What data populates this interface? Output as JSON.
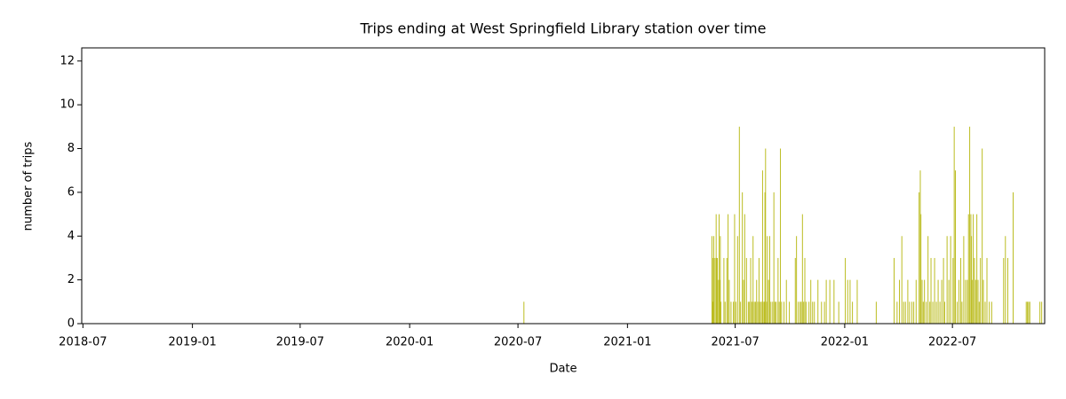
{
  "chart_data": {
    "type": "bar",
    "title": "Trips ending at West Springfield Library station over time",
    "xlabel": "Date",
    "ylabel": "number of trips",
    "color": "#bcbd22",
    "xlim": [
      "2018-06-29",
      "2022-12-03"
    ],
    "xticks": [
      "2018-07",
      "2019-01",
      "2019-07",
      "2020-01",
      "2020-07",
      "2021-01",
      "2021-07",
      "2022-01",
      "2022-07"
    ],
    "ylim": [
      0,
      12.6
    ],
    "yticks": [
      0,
      2,
      4,
      6,
      8,
      10,
      12
    ],
    "x": [
      "2020-07-11",
      "2021-05-23",
      "2021-05-24",
      "2021-05-25",
      "2021-05-26",
      "2021-05-28",
      "2021-05-30",
      "2021-05-31",
      "2021-06-01",
      "2021-06-02",
      "2021-06-04",
      "2021-06-05",
      "2021-06-06",
      "2021-06-07",
      "2021-06-12",
      "2021-06-14",
      "2021-06-17",
      "2021-06-19",
      "2021-06-21",
      "2021-06-24",
      "2021-06-28",
      "2021-06-30",
      "2021-07-02",
      "2021-07-05",
      "2021-07-08",
      "2021-07-10",
      "2021-07-13",
      "2021-07-15",
      "2021-07-17",
      "2021-07-20",
      "2021-07-23",
      "2021-07-25",
      "2021-07-27",
      "2021-07-29",
      "2021-07-31",
      "2021-08-02",
      "2021-08-04",
      "2021-08-06",
      "2021-08-08",
      "2021-08-10",
      "2021-08-12",
      "2021-08-14",
      "2021-08-16",
      "2021-08-17",
      "2021-08-19",
      "2021-08-20",
      "2021-08-21",
      "2021-08-23",
      "2021-08-24",
      "2021-08-26",
      "2021-08-28",
      "2021-08-30",
      "2021-09-02",
      "2021-09-04",
      "2021-09-06",
      "2021-09-08",
      "2021-09-11",
      "2021-09-13",
      "2021-09-15",
      "2021-09-17",
      "2021-09-21",
      "2021-09-25",
      "2021-09-30",
      "2021-10-10",
      "2021-10-12",
      "2021-10-15",
      "2021-10-18",
      "2021-10-20",
      "2021-10-22",
      "2021-10-24",
      "2021-10-26",
      "2021-10-28",
      "2021-11-02",
      "2021-11-05",
      "2021-11-08",
      "2021-11-11",
      "2021-11-17",
      "2021-11-23",
      "2021-11-28",
      "2021-12-01",
      "2021-12-07",
      "2021-12-14",
      "2021-12-22",
      "2022-01-02",
      "2022-01-06",
      "2022-01-10",
      "2022-01-14",
      "2022-01-22",
      "2022-02-23",
      "2022-03-25",
      "2022-03-30",
      "2022-04-03",
      "2022-04-07",
      "2022-04-10",
      "2022-04-13",
      "2022-04-17",
      "2022-04-20",
      "2022-04-24",
      "2022-04-27",
      "2022-05-01",
      "2022-05-06",
      "2022-05-08",
      "2022-05-09",
      "2022-05-11",
      "2022-05-13",
      "2022-05-15",
      "2022-05-18",
      "2022-05-21",
      "2022-05-24",
      "2022-05-26",
      "2022-05-29",
      "2022-06-01",
      "2022-06-04",
      "2022-06-07",
      "2022-06-10",
      "2022-06-13",
      "2022-06-16",
      "2022-06-18",
      "2022-06-22",
      "2022-06-25",
      "2022-06-28",
      "2022-07-02",
      "2022-07-04",
      "2022-07-06",
      "2022-07-09",
      "2022-07-12",
      "2022-07-15",
      "2022-07-17",
      "2022-07-20",
      "2022-07-23",
      "2022-07-26",
      "2022-07-28",
      "2022-07-30",
      "2022-08-01",
      "2022-08-02",
      "2022-08-03",
      "2022-08-05",
      "2022-08-07",
      "2022-08-09",
      "2022-08-11",
      "2022-08-13",
      "2022-08-15",
      "2022-08-17",
      "2022-08-20",
      "2022-08-22",
      "2022-08-25",
      "2022-08-28",
      "2022-09-01",
      "2022-09-05",
      "2022-09-25",
      "2022-09-28",
      "2022-10-02",
      "2022-10-11",
      "2022-11-02",
      "2022-11-04",
      "2022-11-06",
      "2022-11-08",
      "2022-11-25",
      "2022-11-28"
    ],
    "values": [
      1,
      4,
      3,
      1,
      4,
      3,
      5,
      3,
      3,
      2,
      5,
      2,
      4,
      1,
      3,
      1,
      3,
      5,
      2,
      1,
      1,
      5,
      1,
      4,
      9,
      1,
      6,
      2,
      5,
      3,
      1,
      1,
      3,
      1,
      4,
      1,
      1,
      2,
      1,
      3,
      1,
      1,
      7,
      1,
      1,
      6,
      8,
      1,
      4,
      2,
      4,
      1,
      1,
      6,
      1,
      1,
      3,
      1,
      8,
      1,
      1,
      2,
      1,
      3,
      4,
      1,
      1,
      1,
      5,
      1,
      3,
      1,
      1,
      2,
      1,
      1,
      2,
      1,
      1,
      2,
      2,
      2,
      1,
      3,
      2,
      2,
      1,
      2,
      1,
      3,
      1,
      2,
      4,
      1,
      1,
      2,
      1,
      1,
      1,
      2,
      6,
      7,
      5,
      2,
      1,
      2,
      1,
      4,
      1,
      3,
      1,
      3,
      1,
      2,
      1,
      2,
      3,
      1,
      4,
      2,
      4,
      3,
      9,
      7,
      1,
      2,
      3,
      1,
      4,
      2,
      2,
      5,
      9,
      5,
      4,
      2,
      5,
      3,
      2,
      5,
      2,
      1,
      3,
      8,
      2,
      1,
      3,
      1,
      1,
      3,
      4,
      3,
      6,
      1,
      1,
      1,
      1,
      1,
      1
    ]
  }
}
